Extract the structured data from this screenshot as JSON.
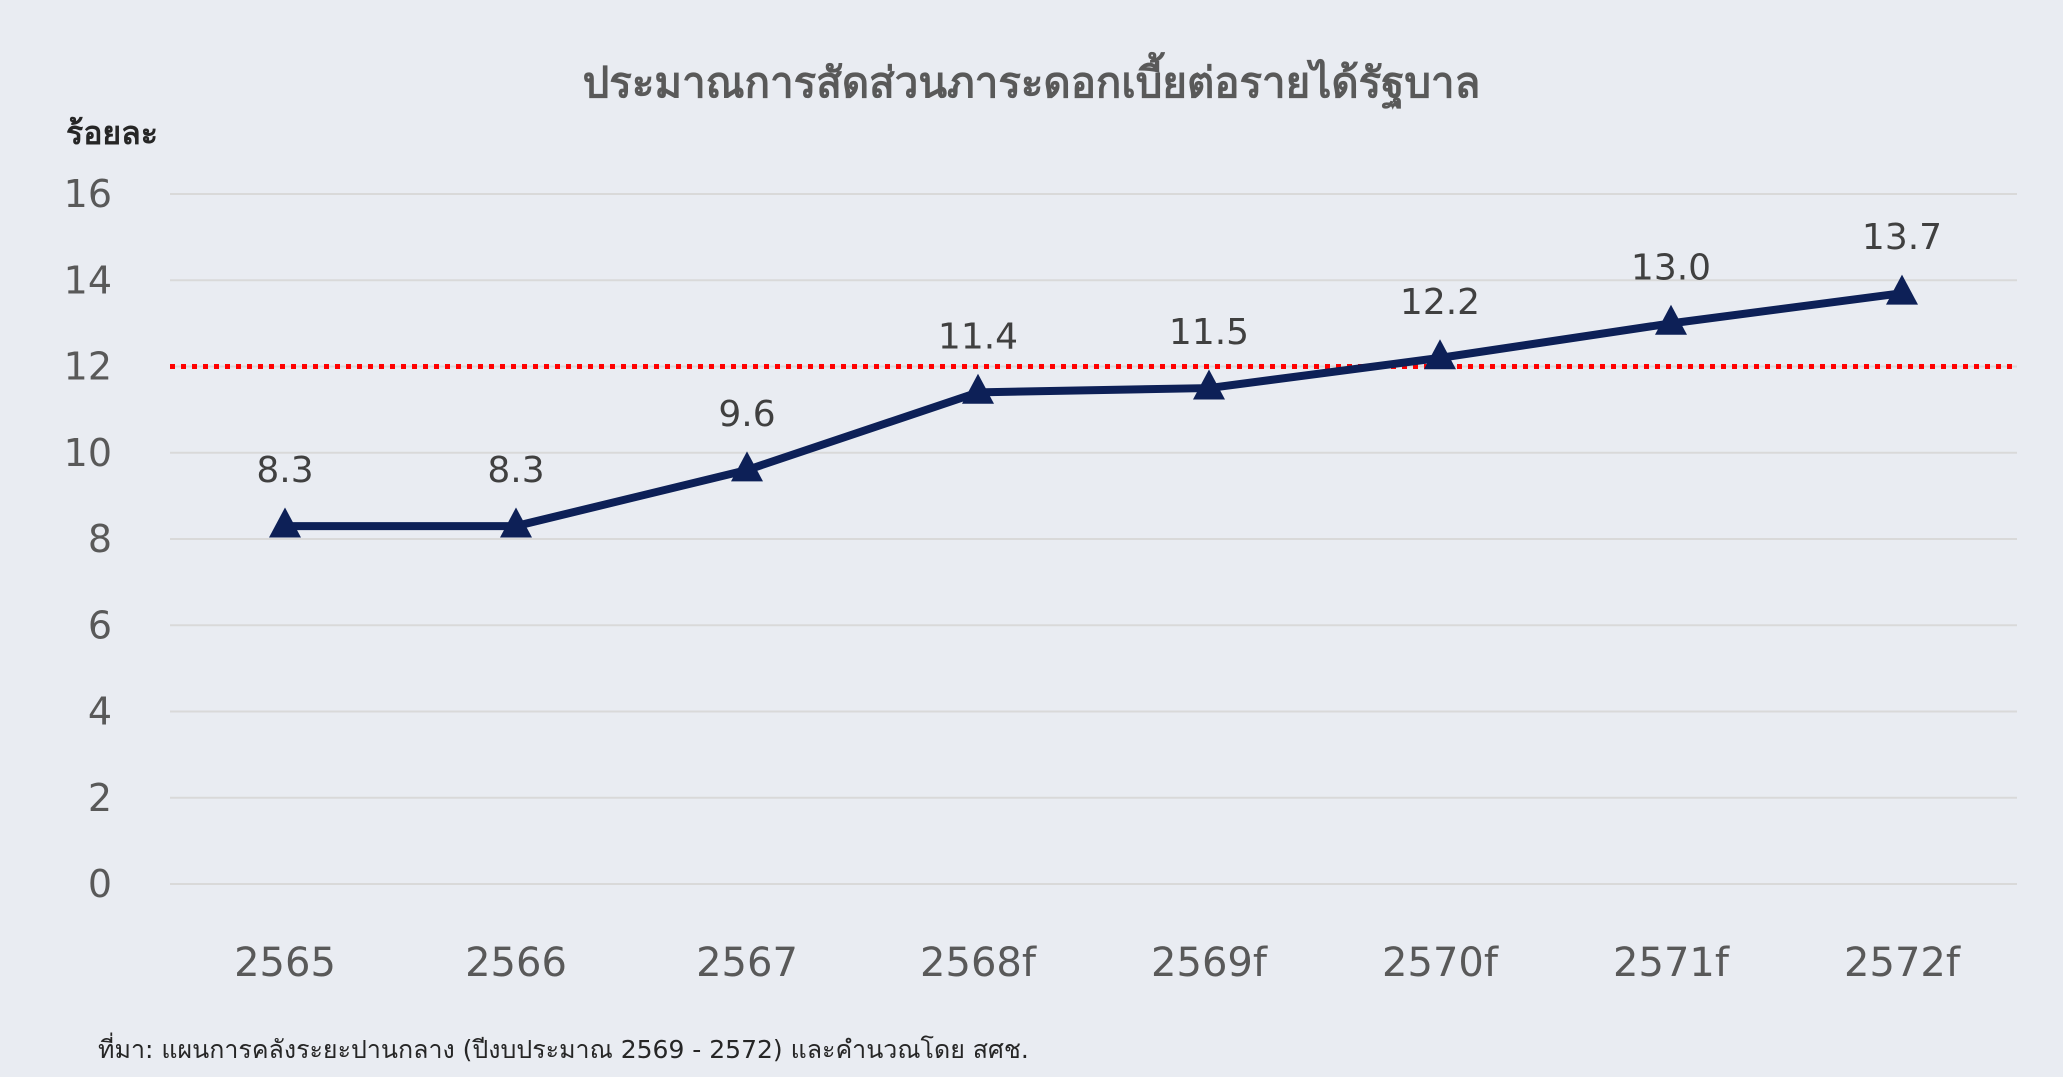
{
  "chart_data": {
    "type": "line",
    "title": "ประมาณการสัดส่วนภาระดอกเบี้ยต่อรายได้รัฐบาล",
    "ylabel": "ร้อยละ",
    "xlabel": "",
    "categories": [
      "2565",
      "2566",
      "2567",
      "2568f",
      "2569f",
      "2570f",
      "2571f",
      "2572f"
    ],
    "series": [
      {
        "values": [
          8.3,
          8.3,
          9.6,
          11.4,
          11.5,
          12.2,
          13.0,
          13.7
        ],
        "labels": [
          "8.3",
          "8.3",
          "9.6",
          "11.4",
          "11.5",
          "12.2",
          "13.0",
          "13.7"
        ],
        "color": "#0d2057",
        "marker": "triangle"
      }
    ],
    "reference_line": {
      "value": 12,
      "color": "#ff0000",
      "style": "dotted"
    },
    "ylim": [
      0,
      16
    ],
    "yticks": [
      "0",
      "2",
      "4",
      "6",
      "8",
      "10",
      "12",
      "14",
      "16"
    ],
    "grid": true,
    "gridline_color": "#d9d9d9",
    "legend": false
  },
  "source_note": "ที่มา: แผนการคลังระยะปานกลาง (ปีงบประมาณ 2569 - 2572) และคำนวณโดย สศช."
}
